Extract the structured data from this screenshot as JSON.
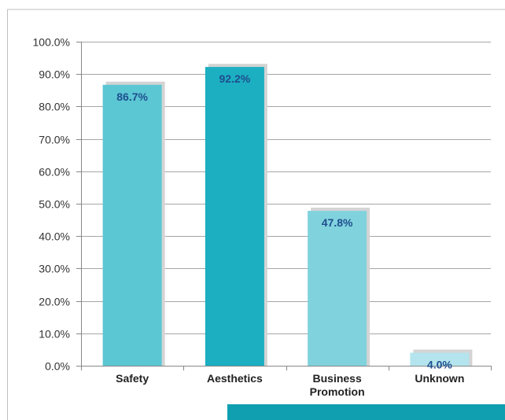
{
  "chart_data": {
    "type": "bar",
    "categories": [
      "Safety",
      "Aesthetics",
      "Business Promotion",
      "Unknown"
    ],
    "category_lines": [
      [
        "Safety"
      ],
      [
        "Aesthetics"
      ],
      [
        "Business",
        "Promotion"
      ],
      [
        "Unknown"
      ]
    ],
    "values": [
      86.7,
      92.2,
      47.8,
      4.0
    ],
    "data_labels": [
      "86.7%",
      "92.2%",
      "47.8%",
      "4.0%"
    ],
    "bar_colors": [
      "#5bc7d3",
      "#1bafc1",
      "#80d3dd",
      "#b4e5ee"
    ],
    "shadow_color": "#d4d4d4",
    "data_label_color": "#1f4f8f",
    "ylim": [
      0,
      100
    ],
    "yticks": [
      0,
      10,
      20,
      30,
      40,
      50,
      60,
      70,
      80,
      90,
      100
    ],
    "ytick_labels": [
      "0.0%",
      "10.0%",
      "20.0%",
      "30.0%",
      "40.0%",
      "50.0%",
      "60.0%",
      "70.0%",
      "80.0%",
      "90.0%",
      "100.0%"
    ],
    "grid": true,
    "title": "",
    "xlabel": "",
    "ylabel": ""
  },
  "colors": {
    "gridline": "#a6a6a6",
    "axis": "#888888",
    "border": "#bfbfbf",
    "footer_bar": "#109fb1"
  }
}
